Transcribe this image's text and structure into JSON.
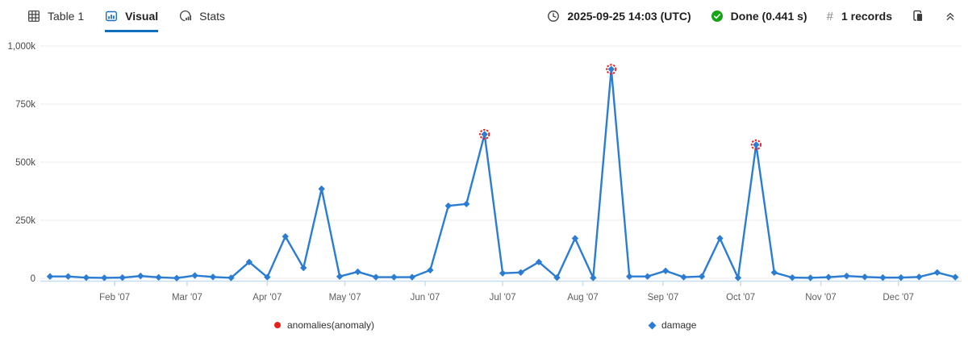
{
  "toolbar": {
    "tabs": [
      {
        "label": "Table 1"
      },
      {
        "label": "Visual"
      },
      {
        "label": "Stats"
      }
    ],
    "timestamp": "2025-09-25 14:03 (UTC)",
    "status": "Done (0.441 s)",
    "records_hash": "#",
    "records": "1 records"
  },
  "legend": {
    "items": [
      {
        "label": "anomalies(anomaly)",
        "marker": "circle",
        "color": "#e8211d"
      },
      {
        "label": "damage",
        "marker": "diamond",
        "color": "#2b7cd3"
      }
    ]
  },
  "chart_data": {
    "type": "line",
    "title": "",
    "xlabel": "",
    "ylabel": "",
    "series": [
      {
        "name": "damage",
        "color": "#2b7cd3",
        "marker": "diamond",
        "values": [
          8000,
          8000,
          3000,
          2000,
          3000,
          10000,
          4000,
          1000,
          12000,
          6000,
          2000,
          70000,
          5000,
          180000,
          45000,
          385000,
          8000,
          28000,
          5000,
          5000,
          5000,
          35000,
          312000,
          320000,
          620000,
          22000,
          25000,
          70000,
          3000,
          172000,
          2000,
          900000,
          8000,
          8000,
          32000,
          5000,
          8000,
          172000,
          2000,
          575000,
          25000,
          3000,
          2000,
          5000,
          10000,
          6000,
          3000,
          3000,
          6000,
          25000,
          5000
        ]
      }
    ],
    "anomalies": {
      "name": "anomalies(anomaly)",
      "color": "#e8211d",
      "marker": "circle",
      "point_indices": [
        24,
        31,
        39
      ],
      "values": [
        620000,
        900000,
        575000
      ]
    },
    "y_axis": {
      "range": [
        0,
        1000000
      ],
      "grid": true,
      "ticks": [
        {
          "label": "0",
          "value": 0
        },
        {
          "label": "250k",
          "value": 250000
        },
        {
          "label": "500k",
          "value": 500000
        },
        {
          "label": "750k",
          "value": 750000
        },
        {
          "label": "1,000k",
          "value": 1000000
        }
      ]
    },
    "x_axis": {
      "ticks": [
        {
          "label": "Feb '07",
          "day_offset": 25
        },
        {
          "label": "Mar '07",
          "day_offset": 53
        },
        {
          "label": "Apr '07",
          "day_offset": 84
        },
        {
          "label": "May '07",
          "day_offset": 114
        },
        {
          "label": "Jun '07",
          "day_offset": 145
        },
        {
          "label": "Jul '07",
          "day_offset": 175
        },
        {
          "label": "Aug '07",
          "day_offset": 206
        },
        {
          "label": "Sep '07",
          "day_offset": 237
        },
        {
          "label": "Oct '07",
          "day_offset": 267
        },
        {
          "label": "Nov '07",
          "day_offset": 298
        },
        {
          "label": "Dec '07",
          "day_offset": 328
        }
      ]
    },
    "legend_position": "bottom"
  }
}
